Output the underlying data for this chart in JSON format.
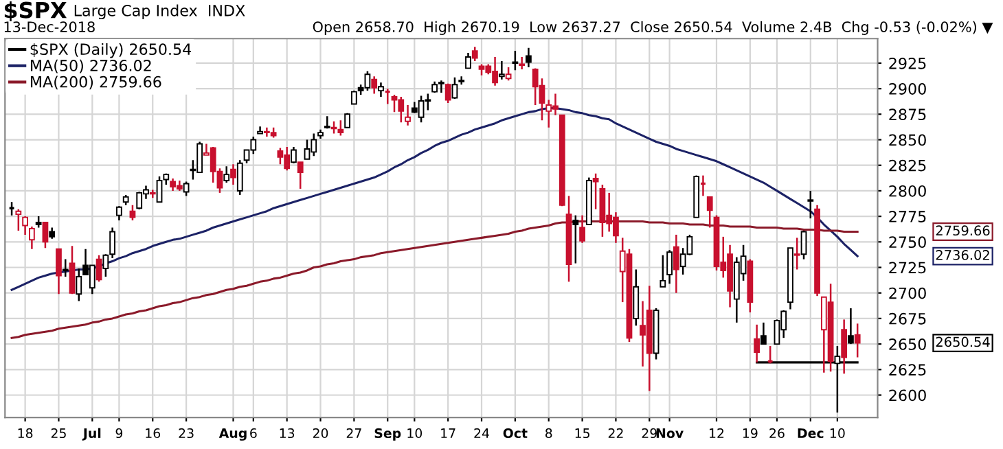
{
  "chart_data": {
    "type": "candlestick",
    "title": "$SPX",
    "subtitle": "Large Cap Index  INDX",
    "annotations": [
      "13-Dec-2018",
      "Open 2658.70  High 2670.19  Low 2637.27  Close 2650.54  Volume 2.4B  Chg -0.53 (-0.02%) ▼",
      "2759.66",
      "2736.02",
      "2650.54"
    ],
    "categories": [
      null,
      null,
      "18",
      null,
      null,
      null,
      null,
      "25",
      null,
      null,
      null,
      null,
      "Jul",
      null,
      null,
      null,
      "9",
      null,
      null,
      null,
      null,
      "16",
      null,
      null,
      null,
      null,
      "23",
      null,
      null,
      null,
      null,
      null,
      null,
      "Aug",
      null,
      null,
      "6",
      null,
      null,
      null,
      null,
      "13",
      null,
      null,
      null,
      null,
      "20",
      null,
      null,
      null,
      null,
      "27",
      null,
      null,
      null,
      null,
      "Sep",
      null,
      null,
      null,
      "10",
      null,
      null,
      null,
      null,
      "17",
      null,
      null,
      null,
      null,
      "24",
      null,
      null,
      null,
      null,
      "Oct",
      null,
      null,
      null,
      null,
      "8",
      null,
      null,
      null,
      null,
      "15",
      null,
      null,
      null,
      null,
      "22",
      null,
      null,
      null,
      null,
      "29",
      null,
      null,
      "Nov",
      null,
      null,
      null,
      null,
      null,
      null,
      "12",
      null,
      null,
      null,
      null,
      "19",
      null,
      null,
      null,
      "26",
      null,
      null,
      null,
      null,
      "Dec",
      null,
      null,
      null,
      "10",
      null,
      null,
      null
    ],
    "ylim": [
      2578,
      2949
    ],
    "yticks": [
      2600,
      2625,
      2650,
      2675,
      2700,
      2725,
      2750,
      2775,
      2800,
      2825,
      2850,
      2875,
      2900,
      2925
    ],
    "grid": true,
    "legend": "top left",
    "series": [
      {
        "type": "candlestick",
        "name": "$SPX (Daily) 2650.54",
        "color": "#000000",
        "colors": [
          "#000000",
          "#c8102e",
          "#c8102e",
          "#c8102e",
          "#000000",
          "#c8102e",
          "#000000",
          "#c8102e",
          "#000000",
          "#c8102e",
          "#000000",
          "#000000",
          "#000000",
          "#c8102e",
          "#000000",
          "#000000",
          "#000000",
          "#000000",
          "#c8102e",
          "#000000",
          "#000000",
          "#c8102e",
          "#000000",
          "#000000",
          "#c8102e",
          "#c8102e",
          "#000000",
          "#000000",
          "#000000",
          "#c8102e",
          "#c8102e",
          "#c8102e",
          "#000000",
          "#c8102e",
          "#000000",
          "#000000",
          "#000000",
          "#000000",
          "#c8102e",
          "#c8102e",
          "#c8102e",
          "#c8102e",
          "#000000",
          "#c8102e",
          "#000000",
          "#000000",
          "#000000",
          "#000000",
          "#c8102e",
          "#c8102e",
          "#000000",
          "#000000",
          "#000000",
          "#000000",
          "#c8102e",
          "#000000",
          "#c8102e",
          "#c8102e",
          "#c8102e",
          "#c8102e",
          "#000000",
          "#000000",
          "#000000",
          "#000000",
          "#000000",
          "#c8102e",
          "#000000",
          "#000000",
          "#000000",
          "#c8102e",
          "#c8102e",
          "#c8102e",
          "#c8102e",
          "#000000",
          "#c8102e",
          "#000000",
          "#c8102e",
          "#000000",
          "#c8102e",
          "#c8102e",
          "#c8102e",
          "#c8102e",
          "#c8102e",
          "#c8102e",
          "#000000",
          "#c8102e",
          "#000000",
          "#c8102e",
          "#c8102e",
          "#c8102e",
          "#c8102e",
          "#c8102e",
          "#c8102e",
          "#000000",
          "#c8102e",
          "#c8102e",
          "#000000",
          "#000000",
          "#000000",
          "#c8102e",
          "#000000",
          "#000000",
          "#000000",
          "#c8102e",
          "#c8102e",
          "#c8102e",
          "#c8102e",
          "#c8102e",
          "#000000",
          "#000000",
          "#c8102e",
          "#c8102e",
          "#000000",
          "#c8102e",
          "#000000",
          "#000000",
          "#000000",
          "#c8102e",
          "#000000",
          "#000000",
          "#c8102e",
          "#c8102e",
          "#c8102e",
          "#000000",
          "#c8102e",
          "#000000",
          "#c8102e"
        ],
        "ohlc": [
          [
            2783,
            2789,
            2776,
            2783
          ],
          [
            2777,
            2782,
            2761,
            2780
          ],
          [
            2766,
            2775,
            2757,
            2774
          ],
          [
            2752,
            2765,
            2743,
            2763
          ],
          [
            2769,
            2775,
            2764,
            2767
          ],
          [
            2769,
            2769,
            2744,
            2750
          ],
          [
            2760,
            2764,
            2753,
            2755
          ],
          [
            2743,
            2743,
            2699,
            2717
          ],
          [
            2722,
            2733,
            2716,
            2723
          ],
          [
            2729,
            2746,
            2699,
            2700
          ],
          [
            2699,
            2724,
            2692,
            2716
          ],
          [
            2727,
            2743,
            2718,
            2718
          ],
          [
            2705,
            2727,
            2699,
            2727
          ],
          [
            2733,
            2737,
            2711,
            2713
          ],
          [
            2724,
            2738,
            2716,
            2737
          ],
          [
            2738,
            2764,
            2734,
            2760
          ],
          [
            2776,
            2785,
            2771,
            2784
          ],
          [
            2789,
            2796,
            2786,
            2794
          ],
          [
            2780,
            2786,
            2771,
            2774
          ],
          [
            2783,
            2799,
            2782,
            2798
          ],
          [
            2797,
            2805,
            2792,
            2801
          ],
          [
            2797,
            2801,
            2793,
            2798
          ],
          [
            2789,
            2814,
            2789,
            2810
          ],
          [
            2811,
            2817,
            2806,
            2816
          ],
          [
            2809,
            2812,
            2800,
            2804
          ],
          [
            2805,
            2810,
            2800,
            2802
          ],
          [
            2799,
            2809,
            2795,
            2807
          ],
          [
            2821,
            2830,
            2811,
            2820
          ],
          [
            2818,
            2848,
            2818,
            2846
          ],
          [
            2835,
            2846,
            2835,
            2837
          ],
          [
            2842,
            2843,
            2808,
            2819
          ],
          [
            2819,
            2822,
            2798,
            2803
          ],
          [
            2810,
            2824,
            2808,
            2816
          ],
          [
            2821,
            2826,
            2806,
            2813
          ],
          [
            2800,
            2830,
            2796,
            2827
          ],
          [
            2830,
            2840,
            2827,
            2840
          ],
          [
            2840,
            2853,
            2836,
            2850
          ],
          [
            2856,
            2863,
            2856,
            2858
          ],
          [
            2857,
            2862,
            2853,
            2858
          ],
          [
            2857,
            2862,
            2852,
            2854
          ],
          [
            2839,
            2842,
            2826,
            2833
          ],
          [
            2835,
            2843,
            2820,
            2822
          ],
          [
            2828,
            2843,
            2827,
            2840
          ],
          [
            2828,
            2828,
            2802,
            2818
          ],
          [
            2831,
            2850,
            2831,
            2841
          ],
          [
            2838,
            2856,
            2834,
            2850
          ],
          [
            2854,
            2860,
            2851,
            2857
          ],
          [
            2862,
            2873,
            2861,
            2863
          ],
          [
            2861,
            2868,
            2856,
            2862
          ],
          [
            2860,
            2869,
            2854,
            2857
          ],
          [
            2862,
            2876,
            2862,
            2875
          ],
          [
            2885,
            2898,
            2885,
            2897
          ],
          [
            2901,
            2904,
            2894,
            2898
          ],
          [
            2901,
            2917,
            2898,
            2914
          ],
          [
            2909,
            2912,
            2895,
            2901
          ],
          [
            2898,
            2906,
            2892,
            2902
          ],
          [
            2897,
            2900,
            2885,
            2897
          ],
          [
            2892,
            2894,
            2877,
            2889
          ],
          [
            2889,
            2892,
            2867,
            2878
          ],
          [
            2868,
            2884,
            2864,
            2872
          ],
          [
            2881,
            2887,
            2876,
            2877
          ],
          [
            2872,
            2893,
            2867,
            2888
          ],
          [
            2888,
            2895,
            2879,
            2889
          ],
          [
            2897,
            2907,
            2896,
            2904
          ],
          [
            2906,
            2908,
            2896,
            2905
          ],
          [
            2904,
            2905,
            2886,
            2889
          ],
          [
            2891,
            2911,
            2890,
            2904
          ],
          [
            2907,
            2912,
            2904,
            2908
          ],
          [
            2920,
            2935,
            2920,
            2931
          ],
          [
            2937,
            2941,
            2927,
            2930
          ],
          [
            2922,
            2924,
            2913,
            2919
          ],
          [
            2922,
            2924,
            2914,
            2916
          ],
          [
            2917,
            2931,
            2903,
            2906
          ],
          [
            2912,
            2927,
            2909,
            2914
          ],
          [
            2910,
            2921,
            2908,
            2914
          ],
          [
            2926,
            2937,
            2918,
            2925
          ],
          [
            2924,
            2931,
            2919,
            2923
          ],
          [
            2932,
            2940,
            2921,
            2926
          ],
          [
            2919,
            2920,
            2884,
            2902
          ],
          [
            2903,
            2910,
            2869,
            2886
          ],
          [
            2878,
            2889,
            2862,
            2884
          ],
          [
            2883,
            2895,
            2874,
            2880
          ],
          [
            2874,
            2874,
            2785,
            2786
          ],
          [
            2777,
            2795,
            2711,
            2728
          ],
          [
            2771,
            2776,
            2729,
            2767
          ],
          [
            2764,
            2776,
            2749,
            2751
          ],
          [
            2767,
            2813,
            2767,
            2810
          ],
          [
            2812,
            2817,
            2782,
            2809
          ],
          [
            2802,
            2806,
            2755,
            2769
          ],
          [
            2776,
            2798,
            2760,
            2768
          ],
          [
            2774,
            2779,
            2749,
            2756
          ],
          [
            2721,
            2754,
            2691,
            2741
          ],
          [
            2738,
            2743,
            2652,
            2656
          ],
          [
            2675,
            2723,
            2668,
            2706
          ],
          [
            2668,
            2692,
            2628,
            2659
          ],
          [
            2683,
            2707,
            2604,
            2641
          ],
          [
            2641,
            2685,
            2635,
            2683
          ],
          [
            2706,
            2737,
            2706,
            2712
          ],
          [
            2718,
            2742,
            2709,
            2740
          ],
          [
            2745,
            2757,
            2700,
            2723
          ],
          [
            2726,
            2744,
            2718,
            2738
          ],
          [
            2738,
            2757,
            2737,
            2755
          ],
          [
            2774,
            2815,
            2774,
            2814
          ],
          [
            2807,
            2815,
            2795,
            2807
          ],
          [
            2794,
            2794,
            2764,
            2781
          ],
          [
            2774,
            2776,
            2722,
            2726
          ],
          [
            2730,
            2755,
            2715,
            2722
          ],
          [
            2738,
            2747,
            2686,
            2702
          ],
          [
            2694,
            2735,
            2671,
            2730
          ],
          [
            2719,
            2747,
            2712,
            2736
          ],
          [
            2731,
            2733,
            2681,
            2691
          ],
          [
            2655,
            2669,
            2632,
            2642
          ],
          [
            2658,
            2671,
            2650,
            2650
          ],
          [
            2633,
            2648,
            2631,
            2633
          ],
          [
            2650,
            2674,
            2650,
            2673
          ],
          [
            2664,
            2683,
            2656,
            2682
          ],
          [
            2691,
            2744,
            2684,
            2744
          ],
          [
            2737,
            2754,
            2723,
            2738
          ],
          [
            2738,
            2761,
            2733,
            2760
          ],
          [
            2791,
            2800,
            2773,
            2790
          ],
          [
            2782,
            2786,
            2697,
            2700
          ],
          [
            2664,
            2696,
            2622,
            2696
          ],
          [
            2691,
            2709,
            2623,
            2633
          ],
          [
            2631,
            2648,
            2583,
            2638
          ],
          [
            2664,
            2674,
            2621,
            2637
          ],
          [
            2658,
            2685,
            2650,
            2651
          ],
          [
            2659,
            2670,
            2637,
            2651
          ]
        ]
      },
      {
        "type": "line",
        "name": "MA(50) 2736.02",
        "color": "#1c2266",
        "values": [
          2703,
          2706,
          2709,
          2712,
          2715,
          2717,
          2719,
          2720,
          2721,
          2722,
          2723,
          2723,
          2724,
          2726,
          2729,
          2731,
          2734,
          2736,
          2739,
          2741,
          2743,
          2746,
          2748,
          2750,
          2752,
          2753,
          2755,
          2757,
          2759,
          2761,
          2764,
          2766,
          2768,
          2770,
          2772,
          2774,
          2776,
          2778,
          2780,
          2783,
          2785,
          2787,
          2789,
          2791,
          2793,
          2795,
          2797,
          2799,
          2801,
          2803,
          2805,
          2807,
          2809,
          2811,
          2813,
          2816,
          2819,
          2823,
          2826,
          2830,
          2833,
          2837,
          2840,
          2844,
          2847,
          2849,
          2852,
          2855,
          2857,
          2860,
          2862,
          2864,
          2866,
          2869,
          2871,
          2873,
          2875,
          2877,
          2878,
          2880,
          2881,
          2881,
          2880,
          2879,
          2877,
          2876,
          2874,
          2873,
          2871,
          2870,
          2866,
          2863,
          2860,
          2857,
          2854,
          2851,
          2848,
          2846,
          2844,
          2841,
          2839,
          2837,
          2835,
          2833,
          2831,
          2829,
          2826,
          2823,
          2820,
          2817,
          2814,
          2811,
          2808,
          2804,
          2800,
          2796,
          2792,
          2788,
          2784,
          2780,
          2774,
          2767,
          2761,
          2755,
          2748,
          2742,
          2736
        ]
      },
      {
        "type": "line",
        "name": "MA(200) 2759.66",
        "color": "#8b1a2a",
        "values": [
          2656,
          2657,
          2659,
          2660,
          2661,
          2662,
          2663,
          2665,
          2666,
          2667,
          2668,
          2669,
          2671,
          2672,
          2674,
          2675,
          2677,
          2679,
          2680,
          2682,
          2683,
          2685,
          2687,
          2688,
          2690,
          2691,
          2693,
          2695,
          2696,
          2698,
          2699,
          2701,
          2703,
          2704,
          2706,
          2707,
          2709,
          2711,
          2712,
          2714,
          2715,
          2717,
          2719,
          2720,
          2722,
          2725,
          2726,
          2728,
          2729,
          2731,
          2732,
          2733,
          2735,
          2736,
          2737,
          2739,
          2740,
          2741,
          2742,
          2743,
          2744,
          2745,
          2746,
          2747,
          2748,
          2749,
          2750,
          2751,
          2752,
          2753,
          2754,
          2755,
          2756,
          2757,
          2758,
          2760,
          2761,
          2763,
          2764,
          2765,
          2766,
          2768,
          2769,
          2769,
          2770,
          2770,
          2770,
          2770,
          2770,
          2770,
          2770,
          2770,
          2770,
          2770,
          2770,
          2769,
          2769,
          2769,
          2768,
          2768,
          2768,
          2767,
          2767,
          2767,
          2766,
          2766,
          2766,
          2765,
          2765,
          2765,
          2765,
          2764,
          2764,
          2764,
          2764,
          2763,
          2763,
          2763,
          2762,
          2762,
          2762,
          2761,
          2761,
          2761,
          2760,
          2760,
          2760
        ]
      },
      {
        "type": "line",
        "color": "#000000",
        "values": [
          null,
          null,
          null,
          null,
          null,
          null,
          null,
          null,
          null,
          null,
          null,
          null,
          null,
          null,
          null,
          null,
          null,
          null,
          null,
          null,
          null,
          null,
          null,
          null,
          null,
          null,
          null,
          null,
          null,
          null,
          null,
          null,
          null,
          null,
          null,
          null,
          null,
          null,
          null,
          null,
          null,
          null,
          null,
          null,
          null,
          null,
          null,
          null,
          null,
          null,
          null,
          null,
          null,
          null,
          null,
          null,
          null,
          null,
          null,
          null,
          null,
          null,
          null,
          null,
          null,
          null,
          null,
          null,
          null,
          null,
          null,
          null,
          null,
          null,
          null,
          null,
          null,
          null,
          null,
          null,
          null,
          null,
          null,
          null,
          null,
          null,
          null,
          null,
          null,
          null,
          null,
          null,
          null,
          null,
          null,
          null,
          null,
          null,
          null,
          null,
          null,
          null,
          null,
          null,
          null,
          null,
          null,
          null,
          null,
          null,
          null,
          2632,
          2632,
          2632,
          2632,
          2632,
          2632,
          2632,
          2632,
          2632,
          2632,
          2632,
          2632,
          2632,
          2632,
          2632,
          2632
        ]
      }
    ]
  }
}
